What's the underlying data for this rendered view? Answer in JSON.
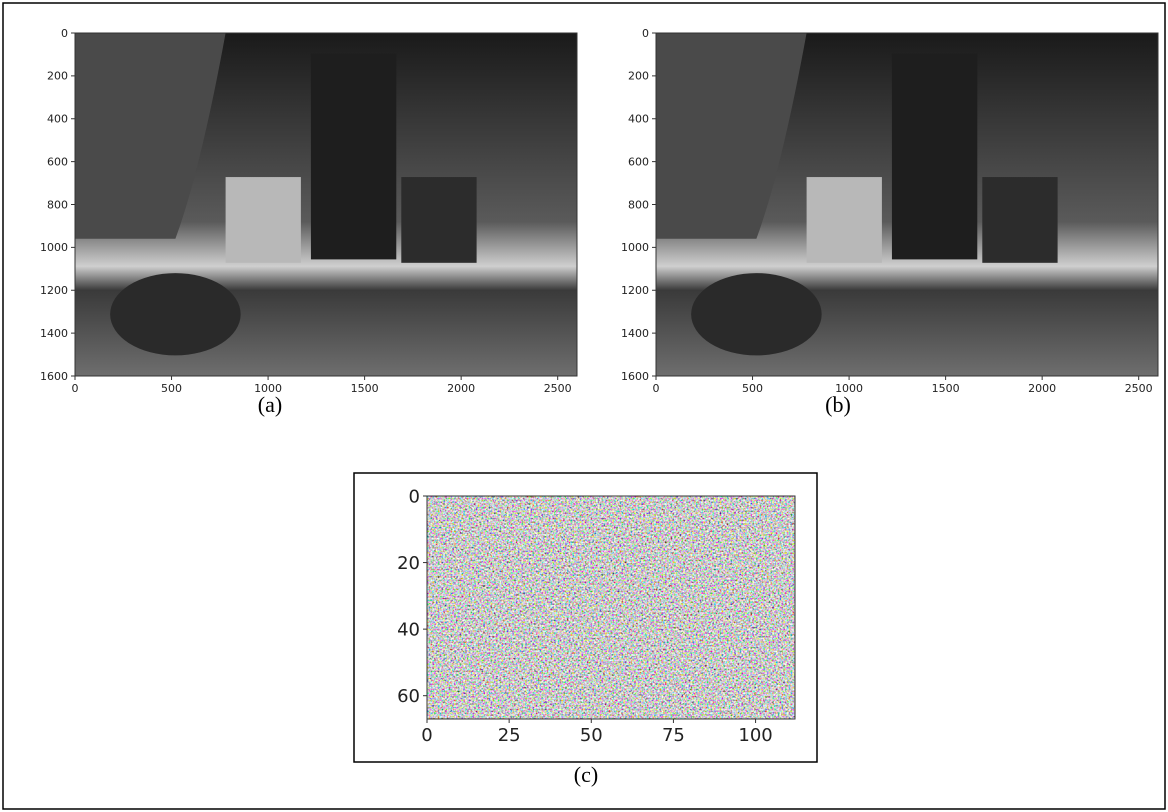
{
  "panels": [
    {
      "caption": "(a)",
      "xlim": [
        0,
        2600
      ],
      "ylim": [
        0,
        1600
      ],
      "xticks": [
        0,
        500,
        1000,
        1500,
        2000,
        2500
      ],
      "yticks": [
        0,
        200,
        400,
        600,
        800,
        1000,
        1200,
        1400,
        1600
      ]
    },
    {
      "caption": "(b)",
      "xlim": [
        0,
        2600
      ],
      "ylim": [
        0,
        1600
      ],
      "xticks": [
        0,
        500,
        1000,
        1500,
        2000,
        2500
      ],
      "yticks": [
        0,
        200,
        400,
        600,
        800,
        1000,
        1200,
        1400,
        1600
      ]
    },
    {
      "caption": "(c)",
      "xlim": [
        0,
        112
      ],
      "ylim": [
        0,
        67
      ],
      "xticks": [
        0,
        25,
        50,
        75,
        100
      ],
      "yticks": [
        0,
        20,
        40,
        60
      ]
    }
  ]
}
